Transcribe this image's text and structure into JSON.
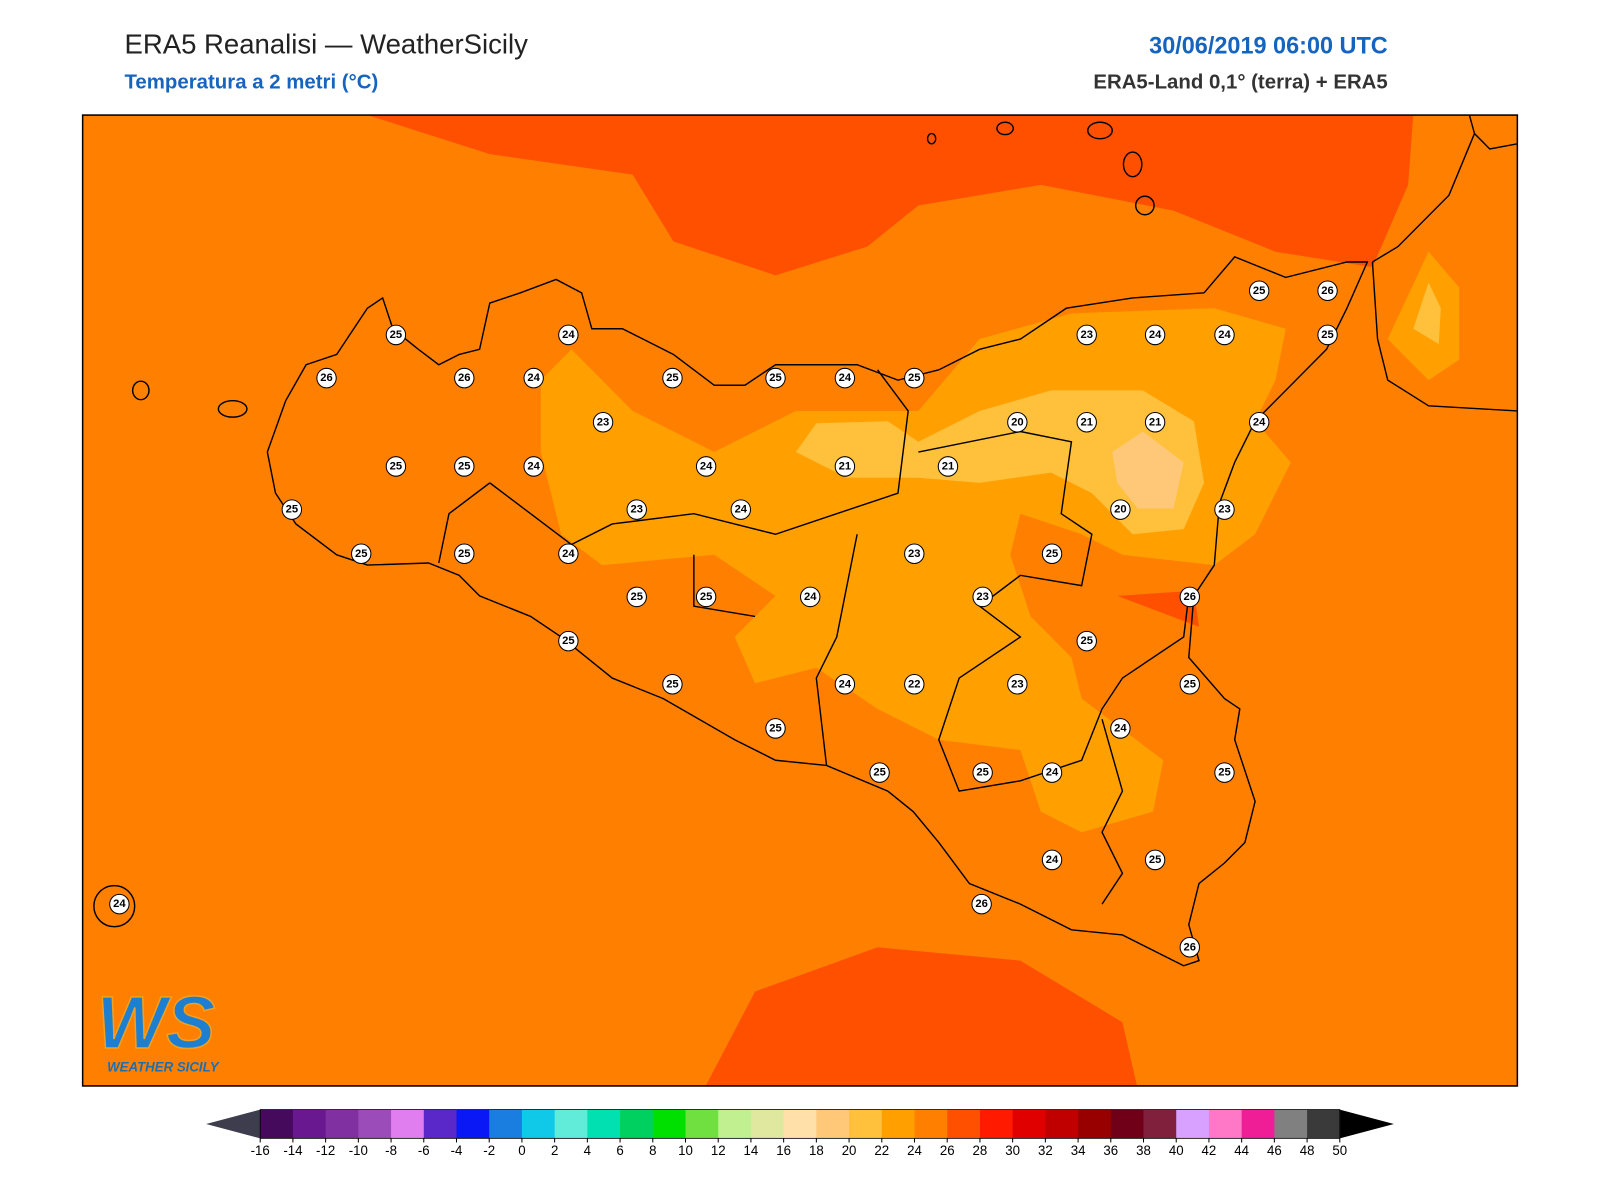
{
  "header": {
    "title": "ERA5 Reanalisi — WeatherSicily",
    "subtitle": "Temperatura a 2 metri (°C)",
    "datetime": "30/06/2019 06:00 UTC",
    "source": "ERA5-Land 0,1° (terra) + ERA5"
  },
  "stations": [
    {
      "value": 25
    },
    {
      "value": 24
    },
    {
      "value": 26
    },
    {
      "value": 26
    },
    {
      "value": 24
    },
    {
      "value": 25
    },
    {
      "value": 25
    },
    {
      "value": 24
    },
    {
      "value": 25
    },
    {
      "value": 23
    },
    {
      "value": 25
    },
    {
      "value": 25
    },
    {
      "value": 24
    },
    {
      "value": 24
    },
    {
      "value": 21
    },
    {
      "value": 21
    },
    {
      "value": 25
    },
    {
      "value": 23
    },
    {
      "value": 24
    },
    {
      "value": 25
    },
    {
      "value": 25
    },
    {
      "value": 24
    },
    {
      "value": 23
    },
    {
      "value": 25
    },
    {
      "value": 25
    },
    {
      "value": 24
    },
    {
      "value": 25
    },
    {
      "value": 25
    },
    {
      "value": 24
    },
    {
      "value": 22
    },
    {
      "value": 25
    },
    {
      "value": 25
    },
    {
      "value": 25
    },
    {
      "value": 26
    },
    {
      "value": 23
    },
    {
      "value": 24
    },
    {
      "value": 24
    },
    {
      "value": 25
    },
    {
      "value": 20
    },
    {
      "value": 21
    },
    {
      "value": 21
    },
    {
      "value": 24
    },
    {
      "value": 20
    },
    {
      "value": 23
    },
    {
      "value": 25
    },
    {
      "value": 23
    },
    {
      "value": 26
    },
    {
      "value": 25
    },
    {
      "value": 23
    },
    {
      "value": 25
    },
    {
      "value": 24
    },
    {
      "value": 25
    },
    {
      "value": 24
    },
    {
      "value": 25
    },
    {
      "value": 24
    },
    {
      "value": 25
    },
    {
      "value": 26
    },
    {
      "value": 26
    },
    {
      "value": 24
    }
  ],
  "colorbar": {
    "ticks": [
      -16,
      -14,
      -12,
      -10,
      -8,
      -6,
      -4,
      -2,
      0,
      2,
      4,
      6,
      8,
      10,
      12,
      14,
      16,
      18,
      20,
      22,
      24,
      26,
      28,
      30,
      32,
      34,
      36,
      38,
      40,
      42,
      44,
      46,
      48,
      50
    ],
    "colors": [
      "#450a5c",
      "#6a1890",
      "#8030a0",
      "#9c4cb8",
      "#e07ef0",
      "#5a28c8",
      "#0a18f5",
      "#1a7ee0",
      "#10c8e8",
      "#60ecd8",
      "#00e0b0",
      "#00d060",
      "#00e000",
      "#70e040",
      "#c0f090",
      "#e0e8a0",
      "#ffe0a8",
      "#ffc878",
      "#ffc03c",
      "#ffa000",
      "#ff8000",
      "#ff5000",
      "#ff1a00",
      "#e00000",
      "#c00000",
      "#980000",
      "#700018",
      "#80203c",
      "#d8a0ff",
      "#ff78c8",
      "#f01e96",
      "#808080",
      "#3a3a3a"
    ],
    "under_color": "#3d3d4d",
    "over_color": "#000000"
  },
  "logo": {
    "mark": "WS",
    "name": "WEATHER SICILY"
  }
}
